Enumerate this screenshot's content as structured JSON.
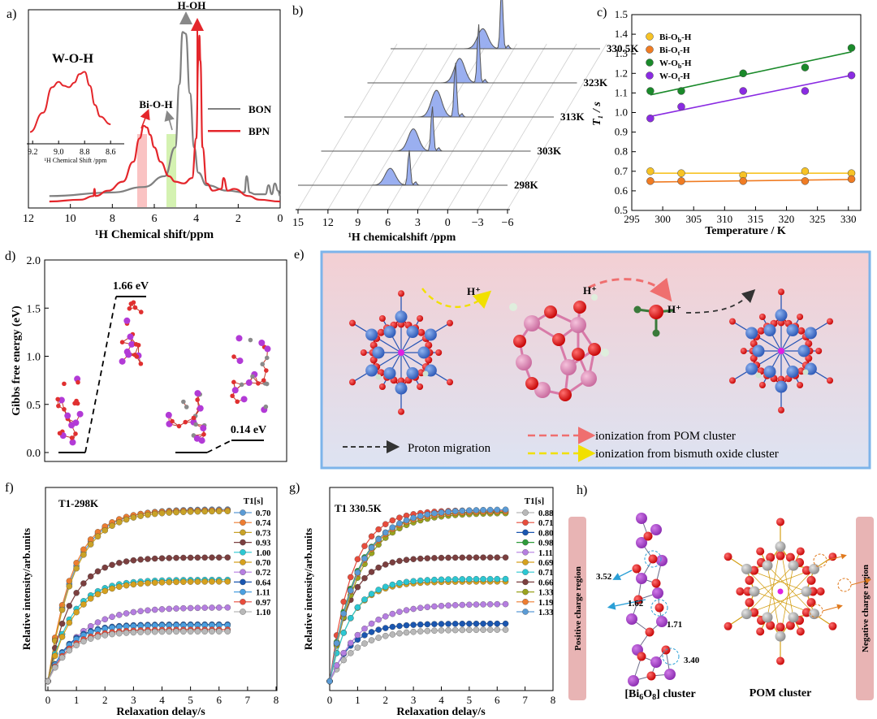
{
  "chart_data": [
    {
      "id": "a",
      "type": "line",
      "panel_label": "a)",
      "xlabel": "¹H Chemical shift/ppm",
      "xlim": [
        12,
        0
      ],
      "x_ticks": [
        "12",
        "10",
        "8",
        "6",
        "4",
        "2",
        "0"
      ],
      "series": [
        {
          "name": "BON",
          "color": "#808080",
          "x": [
            11,
            8,
            6.5,
            5.5,
            5,
            4.8,
            4.65,
            4.5,
            4.3,
            4.1,
            3.9,
            3.5,
            2.5,
            1.7,
            1.6,
            1.45,
            1.2,
            0.7,
            0.55,
            0.4,
            0.25,
            0.1,
            0
          ],
          "y": [
            0.03,
            0.05,
            0.08,
            0.14,
            0.3,
            0.65,
            0.94,
            0.93,
            0.6,
            0.3,
            0.16,
            0.09,
            0.06,
            0.05,
            0.14,
            0.05,
            0.04,
            0.04,
            0.09,
            0.04,
            0.1,
            0.06,
            0.03
          ]
        },
        {
          "name": "BPN",
          "color": "#e4262b",
          "x": [
            11,
            9.5,
            8.9,
            8.85,
            8.8,
            8.2,
            7.5,
            7,
            6.7,
            6.5,
            6.35,
            6.2,
            6,
            5.7,
            5.3,
            5,
            4.6,
            4.2,
            4.0,
            3.9,
            3.85,
            3.8,
            3.7,
            3.5,
            3.2,
            2.8,
            2.7,
            2.5,
            2.2,
            1.5,
            1,
            0
          ],
          "y": [
            0,
            0.01,
            0.03,
            0.07,
            0.03,
            0.06,
            0.11,
            0.22,
            0.35,
            0.42,
            0.41,
            0.37,
            0.3,
            0.22,
            0.14,
            0.11,
            0.1,
            0.13,
            0.35,
            0.78,
            0.92,
            0.78,
            0.3,
            0.1,
            0.06,
            0.07,
            0.13,
            0.06,
            0.07,
            0.03,
            0.01,
            0
          ]
        }
      ],
      "annotations": [
        "H-OH",
        "Bi-O-H",
        "W-O-H"
      ],
      "inset": {
        "xlabel": "¹H Chemical Shift /ppm",
        "x_ticks": [
          "9.2",
          "9.0",
          "8.8",
          "8.6"
        ],
        "x": [
          9.22,
          9.12,
          9.05,
          9.0,
          8.96,
          8.92,
          8.88,
          8.84,
          8.8,
          8.76,
          8.72,
          8.68,
          8.6
        ],
        "y": [
          0.1,
          0.35,
          0.68,
          0.75,
          0.7,
          0.68,
          0.74,
          0.85,
          0.88,
          0.7,
          0.45,
          0.3,
          0.2
        ]
      }
    },
    {
      "id": "b",
      "type": "line",
      "panel_label": "b)",
      "xlabel": "¹H chemicalshift /ppm",
      "x_ticks": [
        "15",
        "12",
        "9",
        "6",
        "3",
        "0",
        "−3",
        "−6"
      ],
      "temperatures": [
        "298K",
        "303K",
        "313K",
        "323K",
        "330.5K"
      ],
      "peaks": [
        {
          "broad": 0.38,
          "sharp": 0.55
        },
        {
          "broad": 0.5,
          "sharp": 0.7
        },
        {
          "broad": 0.6,
          "sharp": 0.85
        },
        {
          "broad": 0.55,
          "sharp": 0.92
        },
        {
          "broad": 0.45,
          "sharp": 1.0
        }
      ]
    },
    {
      "id": "c",
      "type": "scatter",
      "panel_label": "c)",
      "xlabel": "Temperature / K",
      "ylabel": "T₁ / s",
      "xlim": [
        295,
        332
      ],
      "ylim": [
        0.5,
        1.5
      ],
      "x_ticks": [
        295,
        300,
        305,
        310,
        315,
        320,
        325,
        330
      ],
      "y_ticks": [
        "0.5",
        "0.6",
        "0.7",
        "0.8",
        "0.9",
        "1.0",
        "1.1",
        "1.2",
        "1.3",
        "1.4",
        "1.5"
      ],
      "x": [
        298,
        303,
        313,
        323,
        330.5
      ],
      "series": [
        {
          "name": "Bi-Ob-H",
          "base": "Bi-O",
          "sub": "b",
          "tail": "-H",
          "color": "#f7c325",
          "values": [
            0.7,
            0.69,
            0.68,
            0.7,
            0.69
          ],
          "fit": [
            0.69,
            0.69
          ]
        },
        {
          "name": "Bi-Ot-H",
          "base": "Bi-O",
          "sub": "t",
          "tail": "-H",
          "color": "#f07c23",
          "values": [
            0.65,
            0.65,
            0.65,
            0.65,
            0.66
          ],
          "fit": [
            0.645,
            0.658
          ]
        },
        {
          "name": "W-Ob-H",
          "base": "W-O",
          "sub": "b",
          "tail": "-H",
          "color": "#1a8a2a",
          "values": [
            1.11,
            1.11,
            1.2,
            1.23,
            1.33
          ],
          "fit": [
            1.09,
            1.31
          ]
        },
        {
          "name": "W-Ot-H",
          "base": "W-O",
          "sub": "t",
          "tail": "-H",
          "color": "#8a2be2",
          "values": [
            0.97,
            1.03,
            1.11,
            1.11,
            1.19
          ],
          "fit": [
            0.98,
            1.19
          ]
        }
      ]
    },
    {
      "id": "d",
      "type": "line",
      "panel_label": "d)",
      "ylabel": "Gibbs free energy (eV)",
      "ylim": [
        0,
        2.0
      ],
      "y_ticks": [
        "0.0",
        "0.5",
        "1.0",
        "1.5",
        "2.0"
      ],
      "levels": [
        0.0,
        1.66,
        0.0,
        0.14
      ],
      "labels": [
        "1.66 eV",
        "0.14 eV"
      ]
    },
    {
      "id": "f",
      "type": "line",
      "panel_label": "f)",
      "title": "T1-298K",
      "xlabel": "Relaxation delay/s",
      "ylabel": "Relative intensity/arb.units",
      "xlim": [
        0,
        8
      ],
      "x_ticks": [
        "0",
        "1",
        "2",
        "3",
        "4",
        "5",
        "6",
        "7",
        "8"
      ],
      "legend_title": "T1[s]",
      "x": [
        0,
        0.25,
        0.5,
        0.75,
        1,
        1.25,
        1.5,
        1.75,
        2,
        2.25,
        2.5,
        2.75,
        3,
        3.25,
        3.5,
        3.75,
        4,
        4.25,
        4.5,
        4.75,
        5,
        5.25,
        5.5,
        5.75,
        6,
        6.3
      ],
      "series": [
        {
          "label": "0.70",
          "color": "#5b9bd5",
          "amplitude": 1.0,
          "t1": 0.9
        },
        {
          "label": "0.74",
          "color": "#ed7d31",
          "amplitude": 0.995,
          "t1": 0.85
        },
        {
          "label": "0.73",
          "color": "#c9a227",
          "amplitude": 0.99,
          "t1": 0.92
        },
        {
          "label": "0.93",
          "color": "#7b3f3f",
          "amplitude": 0.72,
          "t1": 0.8
        },
        {
          "label": "1.00",
          "color": "#2cc7d2",
          "amplitude": 0.59,
          "t1": 0.8
        },
        {
          "label": "0.70",
          "color": "#d6a11e",
          "amplitude": 0.58,
          "t1": 0.85
        },
        {
          "label": "0.72",
          "color": "#b57ee0",
          "amplitude": 0.43,
          "t1": 1.1
        },
        {
          "label": "0.64",
          "color": "#1a56b0",
          "amplitude": 0.33,
          "t1": 0.7
        },
        {
          "label": "1.11",
          "color": "#4a9fe0",
          "amplitude": 0.325,
          "t1": 0.72
        },
        {
          "label": "0.97",
          "color": "#e74c3c",
          "amplitude": 0.3,
          "t1": 0.75
        },
        {
          "label": "1.10",
          "color": "#b8b8b8",
          "amplitude": 0.29,
          "t1": 0.78
        }
      ]
    },
    {
      "id": "g",
      "type": "line",
      "panel_label": "g)",
      "title": "T1 330.5K",
      "xlabel": "Relaxation delay/s",
      "ylabel": "Relative intensity/arb.units",
      "xlim": [
        0,
        8
      ],
      "x_ticks": [
        "0",
        "1",
        "2",
        "3",
        "4",
        "5",
        "6",
        "7",
        "8"
      ],
      "legend_title": "T1[s]",
      "x": [
        0,
        0.25,
        0.5,
        0.75,
        1,
        1.25,
        1.5,
        1.75,
        2,
        2.25,
        2.5,
        2.75,
        3,
        3.25,
        3.5,
        3.75,
        4,
        4.25,
        4.5,
        4.75,
        5,
        5.25,
        5.5,
        5.75,
        6,
        6.3
      ],
      "series": [
        {
          "label": "0.88",
          "color": "#b8b8b8",
          "amplitude": 0.3,
          "t1": 0.95
        },
        {
          "label": "0.71",
          "color": "#e74c3c",
          "amplitude": 0.995,
          "t1": 0.8
        },
        {
          "label": "0.80",
          "color": "#1a56b0",
          "amplitude": 0.335,
          "t1": 0.78
        },
        {
          "label": "0.98",
          "color": "#2e9b3a",
          "amplitude": 0.985,
          "t1": 0.95
        },
        {
          "label": "1.11",
          "color": "#b57ee0",
          "amplitude": 0.45,
          "t1": 1.1
        },
        {
          "label": "0.69",
          "color": "#d6a11e",
          "amplitude": 0.58,
          "t1": 0.75
        },
        {
          "label": "0.71",
          "color": "#2cc7d2",
          "amplitude": 0.595,
          "t1": 0.78
        },
        {
          "label": "0.66",
          "color": "#7b3f3f",
          "amplitude": 0.72,
          "t1": 0.7
        },
        {
          "label": "1.33",
          "color": "#9aa31e",
          "amplitude": 0.98,
          "t1": 1.05
        },
        {
          "label": "1.19",
          "color": "#ed7d31",
          "amplitude": 0.99,
          "t1": 1.0
        },
        {
          "label": "1.33",
          "color": "#5b9bd5",
          "amplitude": 1.0,
          "t1": 1.0
        }
      ]
    }
  ],
  "panel_e": {
    "label": "e)",
    "proton": "H⁺",
    "legend": [
      "Proton migration",
      "ionization from POM cluster",
      "ionization from bismuth oxide cluster"
    ]
  },
  "panel_h": {
    "label": "h)",
    "left_region": "Positive charge region",
    "right_region": "Negative charge region",
    "distances": [
      "3.52",
      "1.62",
      "1.71",
      "3.40"
    ],
    "left_caption_pre": "[Bi",
    "left_caption_sub1": "6",
    "left_caption_mid": "O",
    "left_caption_sub2": "8",
    "left_caption_post": "] cluster",
    "right_caption": "POM cluster"
  }
}
